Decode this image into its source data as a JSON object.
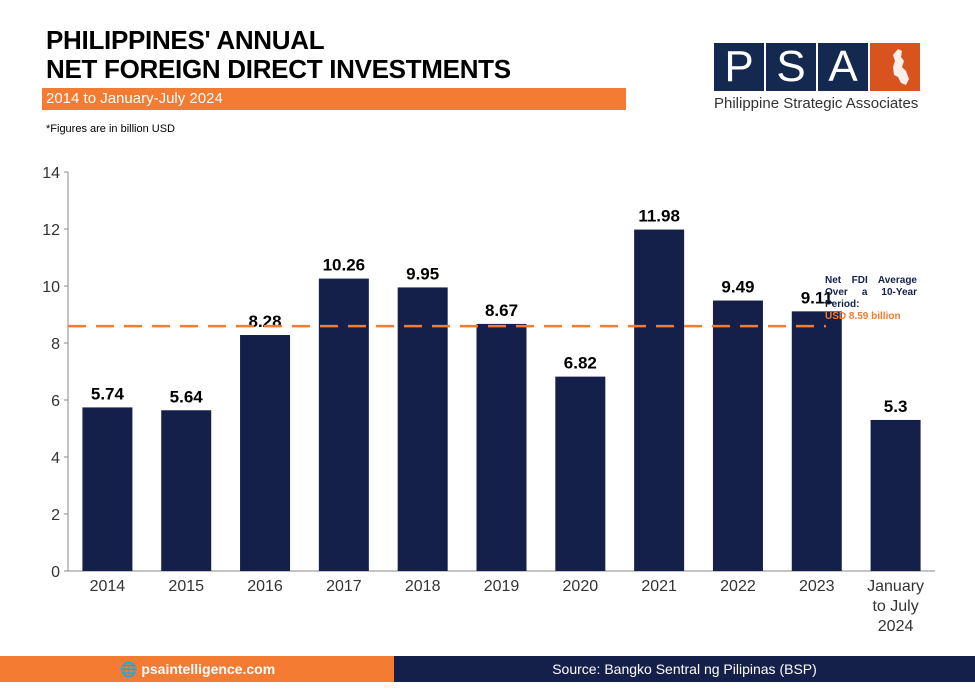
{
  "header": {
    "title_line1": "PHILIPPINES' ANNUAL",
    "title_line2": "NET FOREIGN DIRECT INVESTMENTS",
    "subtitle": "2014 to January-July 2024",
    "note": "*Figures are in billion USD"
  },
  "logo": {
    "letters": [
      "P",
      "S",
      "A"
    ],
    "name": "Philippine Strategic Associates"
  },
  "footer": {
    "website": "psaintelligence.com",
    "source": "Source: Bangko Sentral ng Pilipinas (BSP)",
    "globe_icon": "globe-icon"
  },
  "colors": {
    "bar": "#14204a",
    "accent": "#f47b32"
  },
  "chart_data": {
    "type": "bar",
    "categories": [
      "2014",
      "2015",
      "2016",
      "2017",
      "2018",
      "2019",
      "2020",
      "2021",
      "2022",
      "2023",
      "January to July 2024"
    ],
    "values": [
      5.74,
      5.64,
      8.28,
      10.26,
      9.95,
      8.67,
      6.82,
      11.98,
      9.49,
      9.11,
      5.3
    ],
    "data_labels": [
      "5.74",
      "5.64",
      "8.28",
      "10.26",
      "9.95",
      "8.67",
      "6.82",
      "11.98",
      "9.49",
      "9.11",
      "5.3"
    ],
    "ylim": [
      0,
      14
    ],
    "yticks": [
      0,
      2,
      4,
      6,
      8,
      10,
      12,
      14
    ],
    "grid": false,
    "reference_line": {
      "value": 8.59,
      "style": "dashed",
      "label_line1": "Net FDI Average Over a 10-Year Period:",
      "label_value": "USD 8.59 billion"
    }
  }
}
